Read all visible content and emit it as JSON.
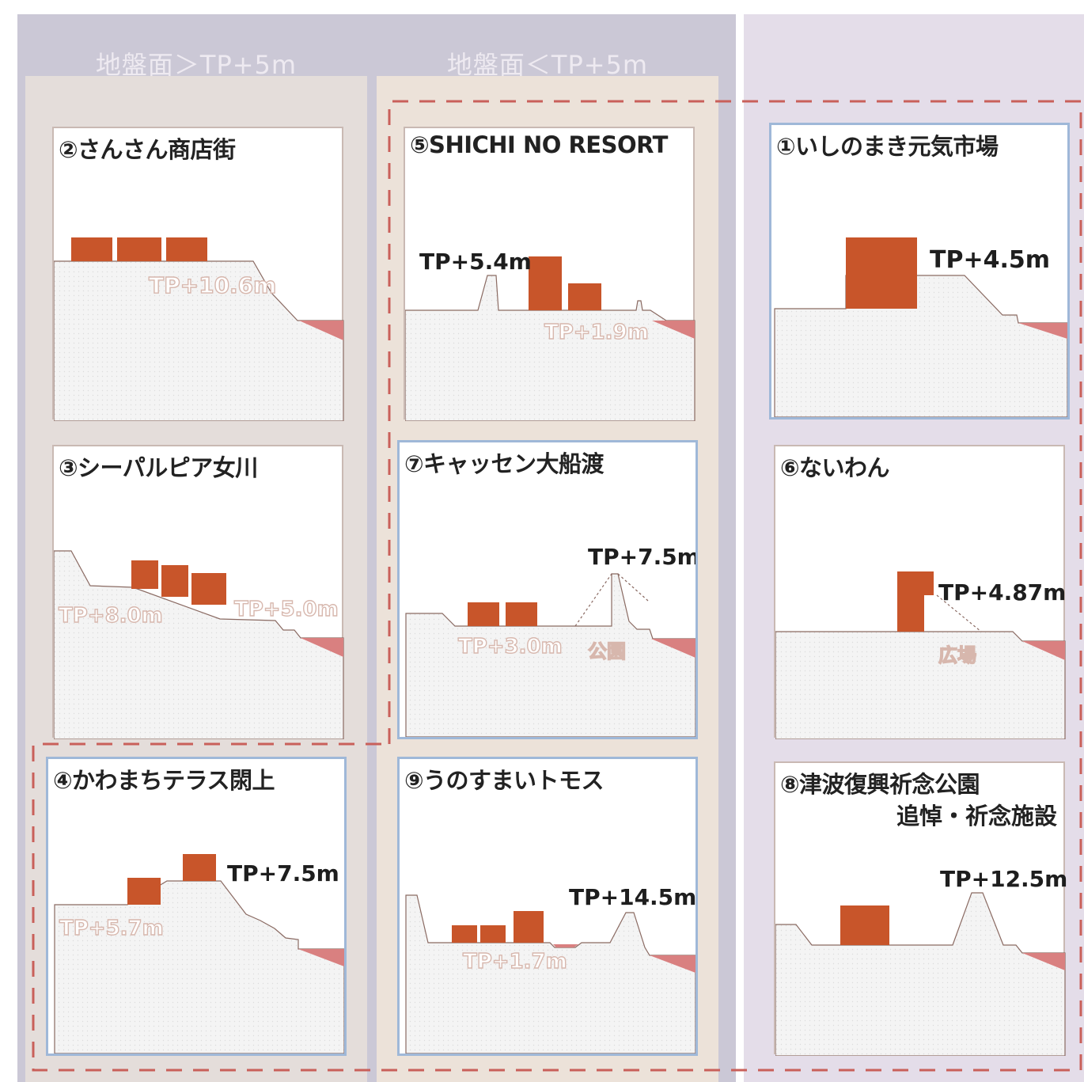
{
  "headers": {
    "above": "地盤面＞TP+5m",
    "below": "地盤面＜TP+5m"
  },
  "colors": {
    "building": "#c8552a",
    "water": "#d98080",
    "ground_line": "#8a6a62",
    "card_border_blue": "#9fb8d8",
    "dashed_frame": "#c9605a"
  },
  "cards": [
    {
      "id": "c2",
      "title": "②さんさん商店街",
      "elev": "TP+10.6m"
    },
    {
      "id": "c5",
      "title": "⑤SHICHI NO RESORT",
      "elev_main": "TP+5.4m",
      "elev_low": "TP+1.9m"
    },
    {
      "id": "c1",
      "title": "①いしのまき元気市場",
      "elev_main": "TP+4.5m"
    },
    {
      "id": "c3",
      "title": "③シーパルピア女川",
      "elev_left": "TP+8.0m",
      "elev_right": "TP+5.0m"
    },
    {
      "id": "c7",
      "title": "⑦キャッセン大船渡",
      "elev_main": "TP+7.5m",
      "elev_low": "TP+3.0m",
      "place": "公園"
    },
    {
      "id": "c6",
      "title": "⑥ないわん",
      "elev_main": "TP+4.87m",
      "place": "広場"
    },
    {
      "id": "c4",
      "title": "④かわまちテラス閖上",
      "elev_main": "TP+7.5m",
      "elev_low": "TP+5.7m"
    },
    {
      "id": "c9",
      "title": "⑨うのすまいトモス",
      "elev_main": "TP+14.5m",
      "elev_low": "TP+1.7m"
    },
    {
      "id": "c8",
      "title": "⑧津波復興祈念公園",
      "title2": "追悼・祈念施設",
      "elev_main": "TP+12.5m"
    }
  ]
}
